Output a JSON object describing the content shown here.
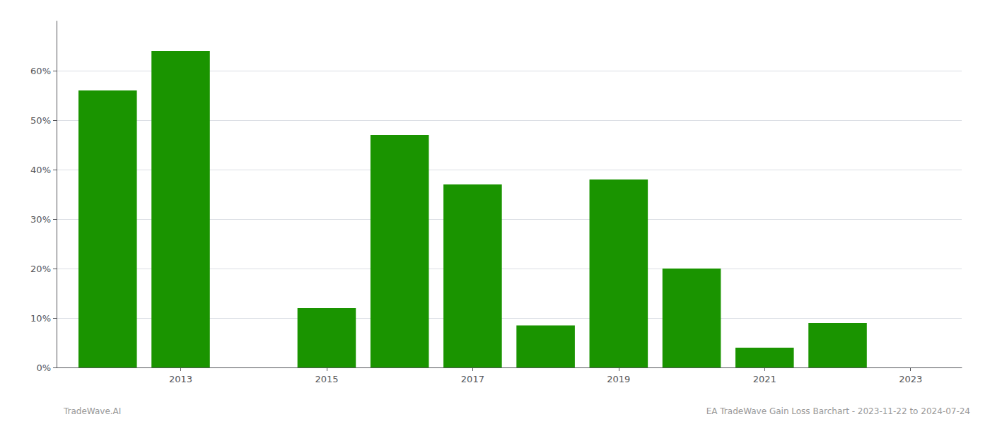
{
  "chart_data": {
    "type": "bar",
    "x": [
      2012,
      2013,
      2015,
      2016,
      2017,
      2018,
      2019,
      2020,
      2021,
      2022
    ],
    "values": [
      0.56,
      0.64,
      0.12,
      0.47,
      0.37,
      0.085,
      0.38,
      0.2,
      0.04,
      0.09
    ],
    "color": "#1a9400",
    "xlim": [
      2011.3,
      2023.7
    ],
    "xticks": [
      2013,
      2015,
      2017,
      2019,
      2021,
      2023
    ],
    "ylim": [
      0,
      0.7
    ],
    "yticks": [
      {
        "value": 0.0,
        "label": "0%"
      },
      {
        "value": 0.1,
        "label": "10%"
      },
      {
        "value": 0.2,
        "label": "20%"
      },
      {
        "value": 0.3,
        "label": "30%"
      },
      {
        "value": 0.4,
        "label": "40%"
      },
      {
        "value": 0.5,
        "label": "50%"
      },
      {
        "value": 0.6,
        "label": "60%"
      }
    ],
    "grid": true,
    "annotations": [
      "TradeWave.AI",
      "EA TradeWave Gain Loss Barchart - 2023-11-22 to 2024-07-24"
    ]
  }
}
